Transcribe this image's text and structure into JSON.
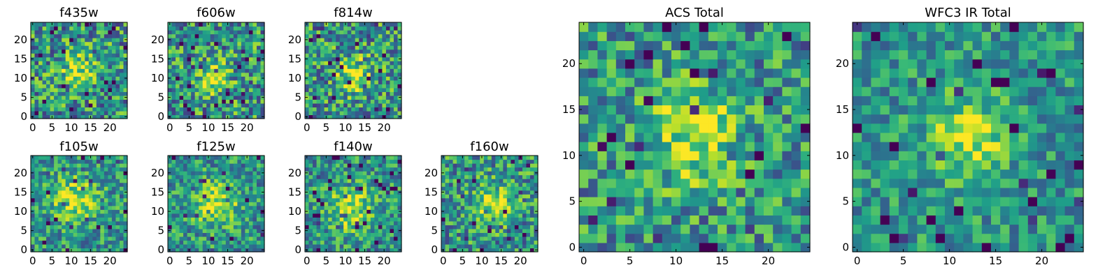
{
  "chart_data": [
    {
      "type": "heatmap",
      "title": "f435w",
      "colormap": "viridis",
      "xlim": [
        0,
        24
      ],
      "ylim": [
        0,
        24
      ],
      "xticks": [
        0,
        5,
        10,
        15,
        20
      ],
      "yticks": [
        0,
        5,
        10,
        15,
        20
      ],
      "xtick_labels": [
        "0",
        "5",
        "10",
        "15",
        "20"
      ],
      "ytick_labels": [
        "0",
        "5",
        "10",
        "15",
        "20"
      ],
      "grid": false,
      "peak_cell": [
        12,
        12
      ],
      "peak_width": 3.0,
      "noise": 0.45,
      "seed": 11
    },
    {
      "type": "heatmap",
      "title": "f606w",
      "colormap": "viridis",
      "xlim": [
        0,
        24
      ],
      "ylim": [
        0,
        24
      ],
      "xticks": [
        0,
        5,
        10,
        15,
        20
      ],
      "yticks": [
        0,
        5,
        10,
        15,
        20
      ],
      "xtick_labels": [
        "0",
        "5",
        "10",
        "15",
        "20"
      ],
      "ytick_labels": [
        "0",
        "5",
        "10",
        "15",
        "20"
      ],
      "grid": false,
      "peak_cell": [
        11,
        10
      ],
      "peak_width": 3.0,
      "noise": 0.45,
      "seed": 23
    },
    {
      "type": "heatmap",
      "title": "f814w",
      "colormap": "viridis",
      "xlim": [
        0,
        24
      ],
      "ylim": [
        0,
        24
      ],
      "xticks": [
        0,
        5,
        10,
        15,
        20
      ],
      "yticks": [
        0,
        5,
        10,
        15,
        20
      ],
      "xtick_labels": [
        "0",
        "5",
        "10",
        "15",
        "20"
      ],
      "ytick_labels": [
        "0",
        "5",
        "10",
        "15",
        "20"
      ],
      "grid": false,
      "peak_cell": [
        12,
        11
      ],
      "peak_width": 3.0,
      "noise": 0.45,
      "seed": 37
    },
    {
      "type": "heatmap",
      "title": "f105w",
      "colormap": "viridis",
      "xlim": [
        0,
        24
      ],
      "ylim": [
        0,
        24
      ],
      "xticks": [
        0,
        5,
        10,
        15,
        20
      ],
      "yticks": [
        0,
        5,
        10,
        15,
        20
      ],
      "xtick_labels": [
        "0",
        "5",
        "10",
        "15",
        "20"
      ],
      "ytick_labels": [
        "0",
        "5",
        "10",
        "15",
        "20"
      ],
      "grid": false,
      "peak_cell": [
        11,
        13
      ],
      "peak_width": 4.0,
      "noise": 0.35,
      "seed": 41
    },
    {
      "type": "heatmap",
      "title": "f125w",
      "colormap": "viridis",
      "xlim": [
        0,
        24
      ],
      "ylim": [
        0,
        24
      ],
      "xticks": [
        0,
        5,
        10,
        15,
        20
      ],
      "yticks": [
        0,
        5,
        10,
        15,
        20
      ],
      "xtick_labels": [
        "0",
        "5",
        "10",
        "15",
        "20"
      ],
      "ytick_labels": [
        "0",
        "5",
        "10",
        "15",
        "20"
      ],
      "grid": false,
      "peak_cell": [
        12,
        12
      ],
      "peak_width": 4.0,
      "noise": 0.35,
      "seed": 53
    },
    {
      "type": "heatmap",
      "title": "f140w",
      "colormap": "viridis",
      "xlim": [
        0,
        24
      ],
      "ylim": [
        0,
        24
      ],
      "xticks": [
        0,
        5,
        10,
        15,
        20
      ],
      "yticks": [
        0,
        5,
        10,
        15,
        20
      ],
      "xtick_labels": [
        "0",
        "5",
        "10",
        "15",
        "20"
      ],
      "ytick_labels": [
        "0",
        "5",
        "10",
        "15",
        "20"
      ],
      "grid": false,
      "peak_cell": [
        11,
        11
      ],
      "peak_width": 4.0,
      "noise": 0.35,
      "seed": 67
    },
    {
      "type": "heatmap",
      "title": "f160w",
      "colormap": "viridis",
      "xlim": [
        0,
        24
      ],
      "ylim": [
        0,
        24
      ],
      "xticks": [
        0,
        5,
        10,
        15,
        20
      ],
      "yticks": [
        0,
        5,
        10,
        15,
        20
      ],
      "xtick_labels": [
        "0",
        "5",
        "10",
        "15",
        "20"
      ],
      "ytick_labels": [
        "0",
        "5",
        "10",
        "15",
        "20"
      ],
      "grid": false,
      "peak_cell": [
        13,
        12
      ],
      "peak_width": 3.5,
      "noise": 0.4,
      "seed": 79
    },
    {
      "type": "heatmap",
      "title": "ACS Total",
      "colormap": "viridis",
      "xlim": [
        0,
        24
      ],
      "ylim": [
        0,
        24
      ],
      "xticks": [
        0,
        5,
        10,
        15,
        20
      ],
      "yticks": [
        0,
        5,
        10,
        15,
        20
      ],
      "xtick_labels": [
        "0",
        "5",
        "10",
        "15",
        "20"
      ],
      "ytick_labels": [
        "0",
        "5",
        "10",
        "15",
        "20"
      ],
      "grid": false,
      "peak_cell": [
        12,
        12
      ],
      "peak_width": 3.5,
      "noise": 0.38,
      "seed": 97
    },
    {
      "type": "heatmap",
      "title": "WFC3 IR Total",
      "colormap": "viridis",
      "xlim": [
        0,
        24
      ],
      "ylim": [
        0,
        24
      ],
      "xticks": [
        0,
        5,
        10,
        15,
        20
      ],
      "yticks": [
        0,
        5,
        10,
        15,
        20
      ],
      "xtick_labels": [
        "0",
        "5",
        "10",
        "15",
        "20"
      ],
      "ytick_labels": [
        "0",
        "5",
        "10",
        "15",
        "20"
      ],
      "grid": false,
      "peak_cell": [
        12,
        12
      ],
      "peak_width": 3.0,
      "noise": 0.3,
      "seed": 131
    }
  ]
}
